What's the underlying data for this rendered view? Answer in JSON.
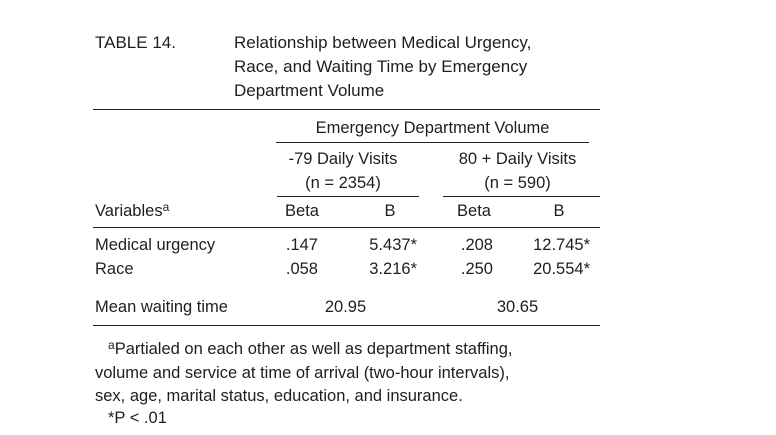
{
  "table": {
    "label": "TABLE 14.",
    "caption_lines": [
      "Relationship between Medical Urgency,",
      "Race, and Waiting Time by Emergency",
      "Department Volume"
    ],
    "group_header": "Emergency Department Volume",
    "groups": [
      {
        "title": "-79 Daily Visits",
        "n": "(n = 2354)"
      },
      {
        "title": "80 + Daily Visits",
        "n": "(n = 590)"
      }
    ],
    "variables_label": "Variables",
    "variables_footnote_mark": "a",
    "subheads": [
      "Beta",
      "B",
      "Beta",
      "B"
    ],
    "rows": [
      {
        "label": "Medical urgency",
        "cells": [
          ".147",
          "5.437*",
          ".208",
          "12.745*"
        ]
      },
      {
        "label": "Race",
        "cells": [
          ".058",
          "3.216*",
          ".250",
          "20.554*"
        ]
      }
    ],
    "mean_row": {
      "label": "Mean waiting time",
      "values": [
        "20.95",
        "30.65"
      ]
    },
    "footnotes": {
      "a_mark": "a",
      "a_lines": [
        "Partialed on each other as well as department staffing,",
        "volume and service at time of arrival (two-hour intervals),",
        "sex, age, marital status, education, and insurance."
      ],
      "significance": "*P < .01"
    }
  }
}
